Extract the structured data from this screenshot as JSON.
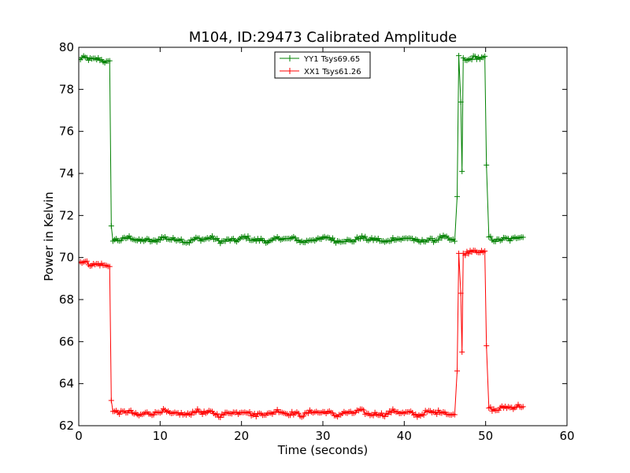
{
  "chart_data": {
    "type": "line",
    "title": "M104, ID:29473 Calibrated Amplitude",
    "xlabel": "Time (seconds)",
    "ylabel": "Power in Kelvin",
    "xlim": [
      0,
      60
    ],
    "ylim": [
      62,
      80
    ],
    "xticks": [
      "0",
      "10",
      "20",
      "30",
      "40",
      "50",
      "60"
    ],
    "yticks": [
      "62",
      "64",
      "66",
      "68",
      "70",
      "72",
      "74",
      "76",
      "78",
      "80"
    ],
    "grid": false,
    "legend_position": "top-center",
    "series": [
      {
        "name": "YY1 Tsys69.65",
        "color": "#008000",
        "marker": "+",
        "segments": [
          {
            "x_start": 0.0,
            "x_end": 3.9,
            "base": 79.4
          },
          {
            "x_start": 4.2,
            "x_end": 46.3,
            "base": 70.85
          },
          {
            "x_start": 47.5,
            "x_end": 49.9,
            "base": 79.45
          },
          {
            "x_start": 50.4,
            "x_end": 54.6,
            "base": 70.9
          }
        ],
        "transitions": [
          {
            "x": 4.0,
            "y": 71.5
          },
          {
            "x": 46.5,
            "y": 72.9
          },
          {
            "x": 46.7,
            "y": 79.6
          },
          {
            "x": 46.95,
            "y": 77.4
          },
          {
            "x": 47.1,
            "y": 74.1
          },
          {
            "x": 47.25,
            "y": 79.5
          },
          {
            "x": 50.1,
            "y": 74.4
          }
        ]
      },
      {
        "name": "XX1 Tsys61.26",
        "color": "#ff0000",
        "marker": "+",
        "segments": [
          {
            "x_start": 0.0,
            "x_end": 3.9,
            "base": 69.7
          },
          {
            "x_start": 4.2,
            "x_end": 46.3,
            "base": 62.6
          },
          {
            "x_start": 47.5,
            "x_end": 49.9,
            "base": 70.25
          },
          {
            "x_start": 50.4,
            "x_end": 54.6,
            "base": 62.85
          }
        ],
        "transitions": [
          {
            "x": 4.0,
            "y": 63.2
          },
          {
            "x": 46.5,
            "y": 64.6
          },
          {
            "x": 46.7,
            "y": 70.2
          },
          {
            "x": 46.95,
            "y": 68.3
          },
          {
            "x": 47.1,
            "y": 65.5
          },
          {
            "x": 47.25,
            "y": 70.2
          },
          {
            "x": 50.1,
            "y": 65.8
          }
        ]
      }
    ]
  }
}
